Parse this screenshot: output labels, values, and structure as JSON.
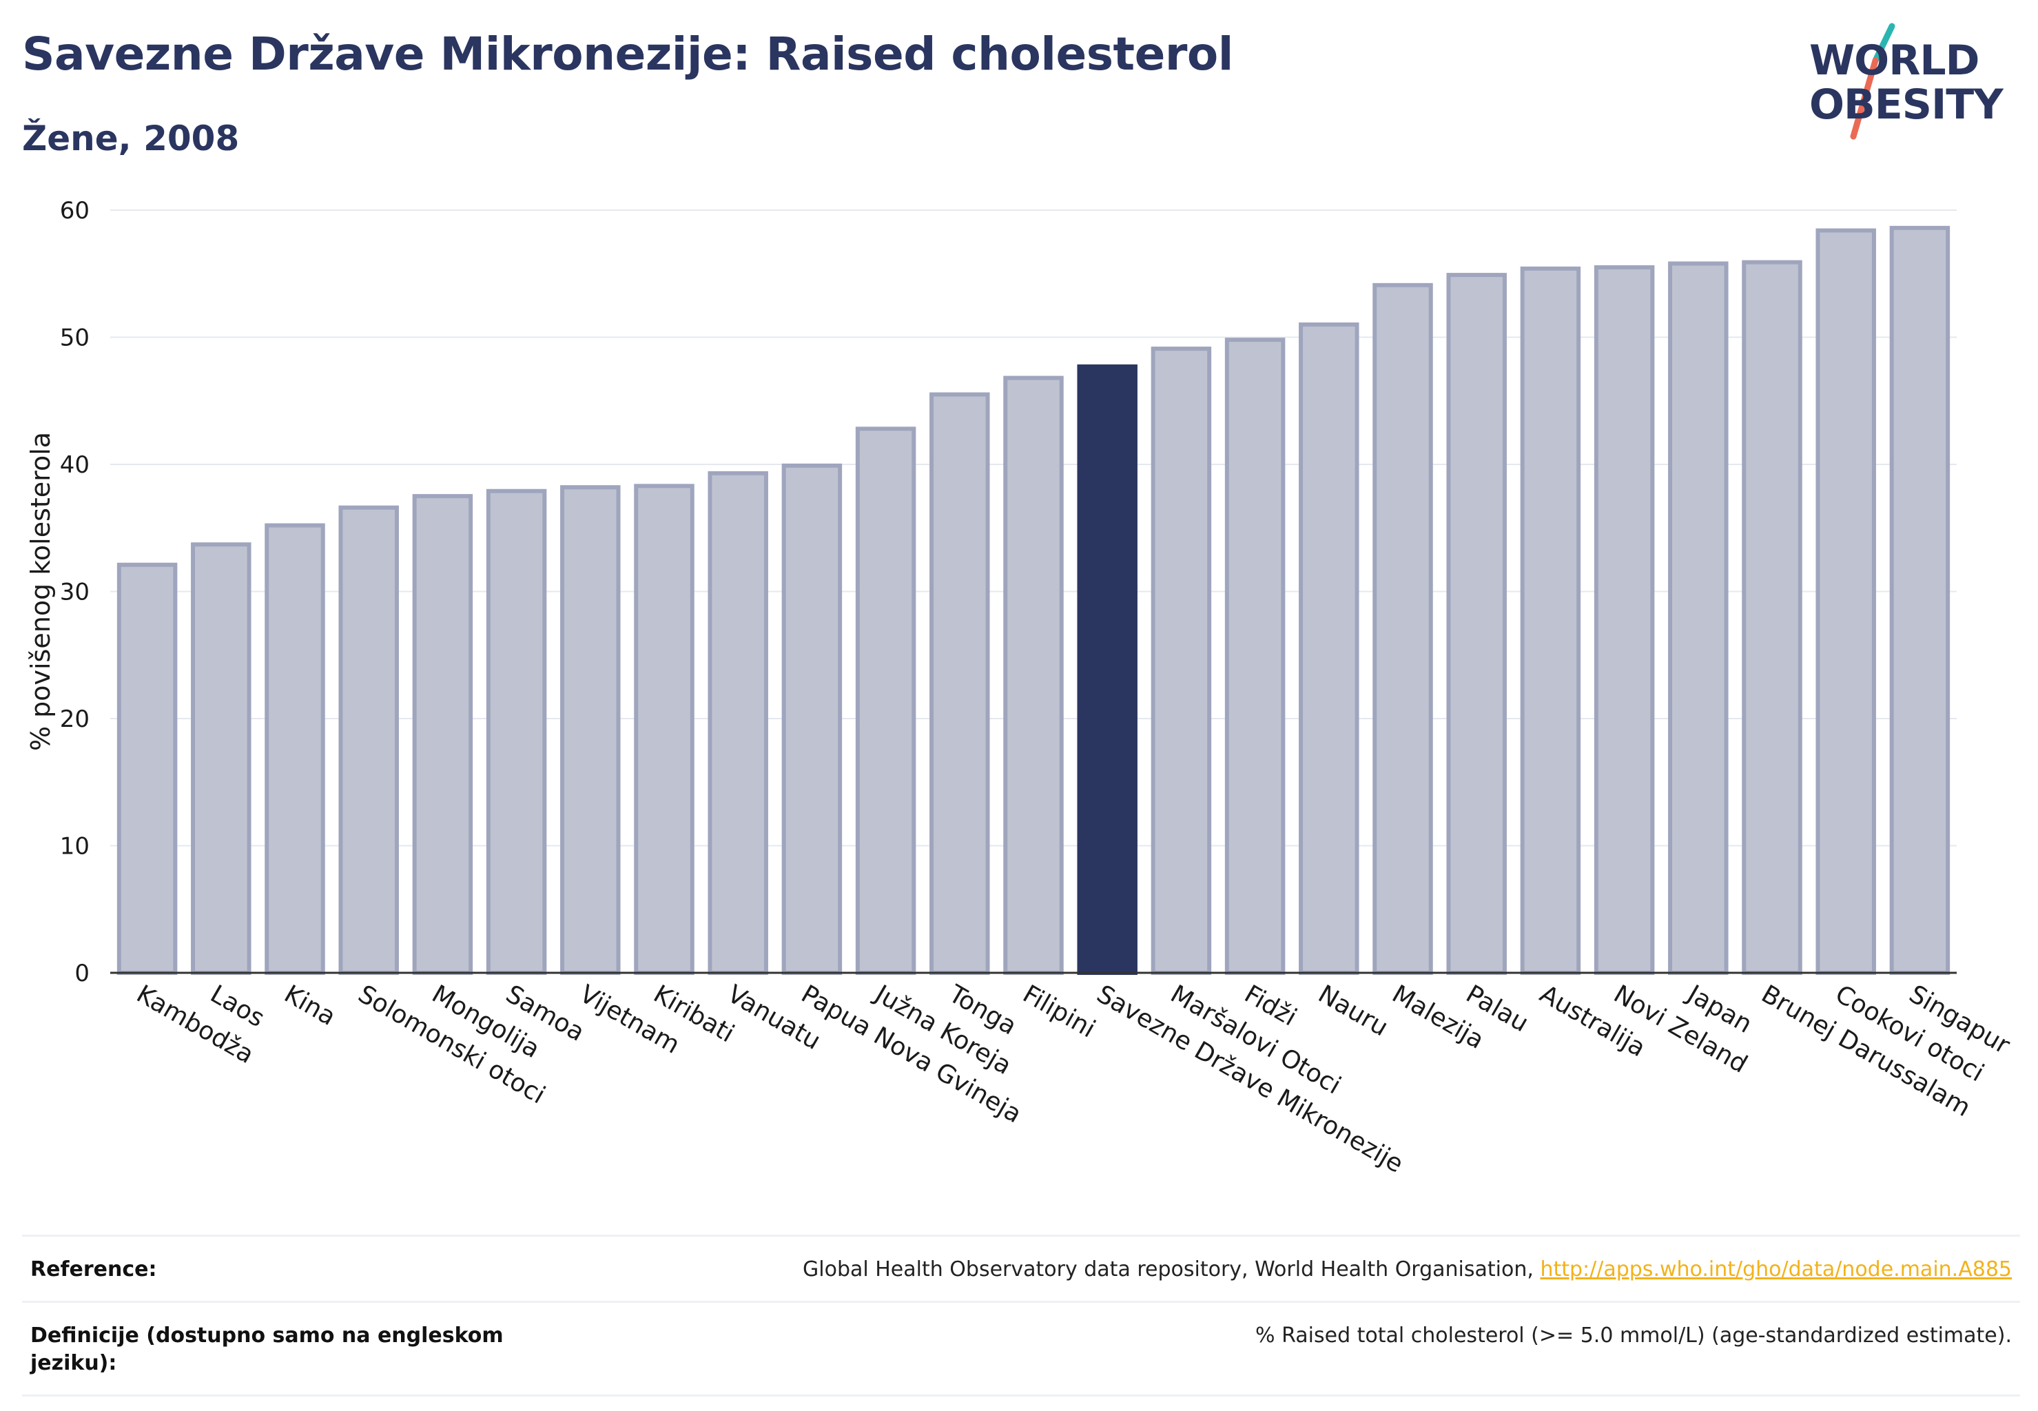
{
  "title": "Savezne Države Mikronezije: Raised cholesterol",
  "subtitle": "Žene, 2008",
  "logo": {
    "line1": "WORLD",
    "line2": "OBESITY"
  },
  "colors": {
    "title": "#2a3560",
    "bar_default": "#bfc3d1",
    "bar_default_border": "#9fa5bd",
    "bar_highlight": "#2a3560",
    "link": "#f2b21b",
    "logo_slash_top": "#2bb5b0",
    "logo_slash_bottom": "#ea6a55"
  },
  "chart_data": {
    "type": "bar",
    "ylabel": "% povišenog kolesterola",
    "xlabel": "",
    "ylim": [
      0,
      60
    ],
    "yticks": [
      0,
      10,
      20,
      30,
      40,
      50,
      60
    ],
    "grid": true,
    "highlight": "Savezne Države Mikronezije",
    "categories": [
      "Kambodža",
      "Laos",
      "Kina",
      "Solomonski otoci",
      "Mongolija",
      "Samoa",
      "Vijetnam",
      "Kiribati",
      "Vanuatu",
      "Papua Nova Gvineja",
      "Južna Koreja",
      "Tonga",
      "Filipini",
      "Savezne Države Mikronezije",
      "Maršalovi Otoci",
      "Fidži",
      "Nauru",
      "Malezija",
      "Palau",
      "Australija",
      "Novi Zeland",
      "Japan",
      "Brunej Darussalam",
      "Cookovi otoci",
      "Singapur"
    ],
    "values": [
      32.1,
      33.7,
      35.2,
      36.6,
      37.5,
      37.9,
      38.2,
      38.3,
      39.3,
      39.9,
      42.8,
      45.5,
      46.8,
      47.7,
      49.1,
      49.8,
      51.0,
      54.1,
      54.9,
      55.4,
      55.5,
      55.8,
      55.9,
      58.4,
      58.6
    ]
  },
  "reference": {
    "label": "Reference:",
    "text": "Global Health Observatory data repository, World Health Organisation, ",
    "link": "http://apps.who.int/gho/data/node.main.A885"
  },
  "definition": {
    "label": "Definicije (dostupno samo na engleskom jeziku):",
    "text": "% Raised total cholesterol (>= 5.0 mmol/L) (age-standardized estimate)."
  }
}
